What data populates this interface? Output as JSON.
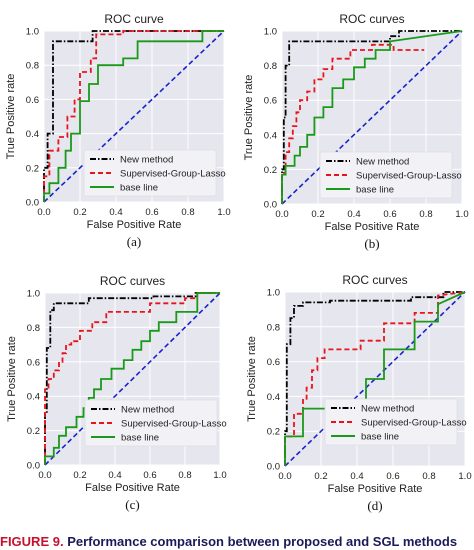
{
  "caption": {
    "label": "FIGURE 9.",
    "text": "Performance comparison between proposed and SGL methods"
  },
  "legend_labels": [
    "New method",
    "Supervised-Group-Lasso",
    "base line"
  ],
  "series_styles": {
    "New method": {
      "color": "#000000",
      "dash": "dashdot"
    },
    "Supervised-Group-Lasso": {
      "color": "#e8141c",
      "dash": "dashed"
    },
    "base line": {
      "color": "#1a9a1a",
      "dash": "solid"
    },
    "diagonal": {
      "color": "#1a22cc",
      "dash": "dashed"
    }
  },
  "colors": {
    "plot_bg": "#e6e6ee",
    "grid": "#ffffff"
  },
  "chart_data": [
    {
      "type": "line",
      "panel_label": "(a)",
      "title": "ROC curve",
      "xlabel": "False Positive Rate",
      "ylabel": "True Positive rate",
      "xlim": [
        0,
        1
      ],
      "ylim": [
        0,
        1
      ],
      "xticks": [
        "0.0",
        "0.2",
        "0.4",
        "0.6",
        "0.8",
        "1.0"
      ],
      "yticks": [
        "0.0",
        "0.2",
        "0.4",
        "0.6",
        "0.8",
        "1.0"
      ],
      "legend_position": "center-left",
      "series": [
        {
          "name": "New method",
          "x": [
            0,
            0,
            0.02,
            0.02,
            0.05,
            0.05,
            0.08,
            0.08,
            0.27,
            0.27,
            1.0
          ],
          "y": [
            0,
            0.2,
            0.2,
            0.4,
            0.4,
            0.94,
            0.94,
            0.94,
            0.94,
            1.0,
            1.0
          ]
        },
        {
          "name": "Supervised-Group-Lasso",
          "x": [
            0,
            0,
            0.03,
            0.03,
            0.08,
            0.08,
            0.13,
            0.13,
            0.17,
            0.17,
            0.2,
            0.2,
            0.26,
            0.26,
            0.29,
            0.29,
            0.44,
            0.44,
            1.0
          ],
          "y": [
            0,
            0.15,
            0.15,
            0.3,
            0.3,
            0.38,
            0.38,
            0.5,
            0.5,
            0.6,
            0.6,
            0.76,
            0.76,
            0.84,
            0.84,
            0.98,
            0.98,
            1.0,
            1.0
          ]
        },
        {
          "name": "base line",
          "x": [
            0,
            0,
            0.03,
            0.03,
            0.08,
            0.08,
            0.12,
            0.12,
            0.15,
            0.15,
            0.2,
            0.2,
            0.25,
            0.25,
            0.3,
            0.3,
            0.44,
            0.44,
            0.52,
            0.52,
            0.88,
            0.88,
            1.0
          ],
          "y": [
            0,
            0.05,
            0.05,
            0.11,
            0.11,
            0.2,
            0.2,
            0.3,
            0.3,
            0.4,
            0.4,
            0.59,
            0.59,
            0.69,
            0.69,
            0.8,
            0.8,
            0.84,
            0.84,
            0.94,
            0.94,
            1.0,
            1.0
          ]
        }
      ]
    },
    {
      "type": "line",
      "panel_label": "(b)",
      "title": "ROC curves",
      "xlabel": "False Positive Rate",
      "ylabel": "True Positive rate",
      "xlim": [
        0,
        1
      ],
      "ylim": [
        0,
        1
      ],
      "xticks": [
        "0.0",
        "0.2",
        "0.4",
        "0.6",
        "0.8",
        "1.0"
      ],
      "yticks": [
        "0.0",
        "0.2",
        "0.4",
        "0.6",
        "0.8",
        "1.0"
      ],
      "legend_position": "lower-center",
      "series": [
        {
          "name": "New method",
          "x": [
            0,
            0,
            0.01,
            0.01,
            0.02,
            0.02,
            0.04,
            0.04,
            0.6,
            0.6,
            0.65,
            0.65,
            1.0
          ],
          "y": [
            0,
            0.2,
            0.2,
            0.5,
            0.5,
            0.8,
            0.8,
            0.94,
            0.94,
            0.97,
            0.97,
            1.0,
            1.0
          ]
        },
        {
          "name": "Supervised-Group-Lasso",
          "x": [
            0,
            0,
            0.02,
            0.02,
            0.04,
            0.04,
            0.06,
            0.06,
            0.08,
            0.08,
            0.1,
            0.1,
            0.14,
            0.14,
            0.18,
            0.18,
            0.23,
            0.23,
            0.28,
            0.28,
            0.38,
            0.38,
            0.5,
            0.5,
            0.62,
            0.62,
            0.79
          ],
          "y": [
            0,
            0.18,
            0.18,
            0.3,
            0.3,
            0.38,
            0.38,
            0.45,
            0.45,
            0.53,
            0.53,
            0.6,
            0.6,
            0.65,
            0.65,
            0.72,
            0.72,
            0.78,
            0.78,
            0.84,
            0.84,
            0.89,
            0.89,
            0.92,
            0.92,
            0.89,
            0.89
          ]
        },
        {
          "name": "base line",
          "x": [
            0,
            0,
            0.02,
            0.02,
            0.07,
            0.07,
            0.1,
            0.1,
            0.14,
            0.14,
            0.18,
            0.18,
            0.23,
            0.23,
            0.28,
            0.28,
            0.34,
            0.34,
            0.4,
            0.4,
            0.46,
            0.46,
            0.52,
            0.52,
            0.6,
            0.6,
            1.0
          ],
          "y": [
            0,
            0.17,
            0.17,
            0.22,
            0.22,
            0.28,
            0.28,
            0.33,
            0.33,
            0.4,
            0.4,
            0.5,
            0.5,
            0.56,
            0.56,
            0.67,
            0.67,
            0.72,
            0.72,
            0.79,
            0.79,
            0.84,
            0.84,
            0.89,
            0.89,
            0.94,
            1.0
          ]
        }
      ]
    },
    {
      "type": "line",
      "panel_label": "(c)",
      "title": "ROC curves",
      "xlabel": "False Positive Rate",
      "ylabel": "True Positive rate",
      "xlim": [
        0,
        1
      ],
      "ylim": [
        0,
        1
      ],
      "xticks": [
        "0.0",
        "0.2",
        "0.4",
        "0.6",
        "0.8",
        "1.0"
      ],
      "yticks": [
        "0.0",
        "0.2",
        "0.4",
        "0.6",
        "0.8",
        "1.0"
      ],
      "legend_position": "lower-right",
      "series": [
        {
          "name": "New method",
          "x": [
            0,
            0,
            0.01,
            0.01,
            0.03,
            0.03,
            0.05,
            0.05,
            0.25,
            0.25,
            0.62,
            0.62,
            0.86,
            0.86,
            1.0
          ],
          "y": [
            0,
            0.3,
            0.3,
            0.68,
            0.68,
            0.9,
            0.9,
            0.94,
            0.94,
            0.97,
            0.97,
            0.98,
            0.98,
            1.0,
            1.0
          ]
        },
        {
          "name": "Supervised-Group-Lasso",
          "x": [
            0,
            0,
            0.02,
            0.02,
            0.05,
            0.05,
            0.08,
            0.08,
            0.1,
            0.1,
            0.12,
            0.12,
            0.15,
            0.15,
            0.2,
            0.2,
            0.27,
            0.27,
            0.35,
            0.35,
            0.45,
            0.45,
            0.6,
            0.6,
            0.8,
            0.8,
            0.87,
            0.87,
            1.0
          ],
          "y": [
            0,
            0.44,
            0.44,
            0.5,
            0.5,
            0.55,
            0.55,
            0.6,
            0.6,
            0.65,
            0.65,
            0.7,
            0.7,
            0.72,
            0.72,
            0.78,
            0.78,
            0.83,
            0.83,
            0.89,
            0.89,
            0.89,
            0.89,
            0.94,
            0.94,
            0.97,
            0.97,
            1.0,
            1.0
          ]
        },
        {
          "name": "base line",
          "x": [
            0,
            0,
            0.05,
            0.05,
            0.08,
            0.08,
            0.12,
            0.12,
            0.18,
            0.18,
            0.22,
            0.22,
            0.25,
            0.25,
            0.28,
            0.28,
            0.32,
            0.32,
            0.38,
            0.38,
            0.45,
            0.45,
            0.5,
            0.5,
            0.55,
            0.55,
            0.6,
            0.6,
            0.65,
            0.65,
            0.75,
            0.75,
            0.87,
            0.87,
            1.0
          ],
          "y": [
            0,
            0.05,
            0.05,
            0.1,
            0.1,
            0.17,
            0.17,
            0.22,
            0.22,
            0.28,
            0.28,
            0.33,
            0.33,
            0.39,
            0.39,
            0.44,
            0.44,
            0.5,
            0.5,
            0.56,
            0.56,
            0.61,
            0.61,
            0.67,
            0.67,
            0.72,
            0.72,
            0.78,
            0.78,
            0.83,
            0.83,
            0.89,
            0.89,
            1.0,
            1.0
          ]
        }
      ]
    },
    {
      "type": "line",
      "panel_label": "(d)",
      "title": "ROC curves",
      "xlabel": "False Positive Rate",
      "ylabel": "True Positive rate",
      "xlim": [
        0,
        1
      ],
      "ylim": [
        0,
        1
      ],
      "xticks": [
        "0.0",
        "0.2",
        "0.4",
        "0.6",
        "0.8",
        "1.0"
      ],
      "yticks": [
        "0.0",
        "0.2",
        "0.4",
        "0.6",
        "0.8",
        "1.0"
      ],
      "legend_position": "lower-right",
      "series": [
        {
          "name": "New method",
          "x": [
            0,
            0,
            0.01,
            0.01,
            0.03,
            0.03,
            0.05,
            0.05,
            0.1,
            0.1,
            0.25,
            0.25,
            0.7,
            0.7,
            0.88,
            0.88,
            1.0
          ],
          "y": [
            0,
            0.2,
            0.2,
            0.7,
            0.7,
            0.85,
            0.85,
            0.92,
            0.92,
            0.94,
            0.94,
            0.95,
            0.95,
            0.97,
            0.97,
            1.0,
            1.0
          ]
        },
        {
          "name": "Supervised-Group-Lasso",
          "x": [
            0,
            0,
            0.05,
            0.05,
            0.1,
            0.1,
            0.12,
            0.12,
            0.15,
            0.15,
            0.18,
            0.18,
            0.22,
            0.22,
            0.3,
            0.3,
            0.42,
            0.42,
            0.55,
            0.55,
            0.72,
            0.72,
            0.85,
            0.85,
            1.0
          ],
          "y": [
            0,
            0.17,
            0.17,
            0.3,
            0.3,
            0.38,
            0.38,
            0.45,
            0.45,
            0.55,
            0.55,
            0.62,
            0.62,
            0.67,
            0.67,
            0.67,
            0.67,
            0.72,
            0.72,
            0.82,
            0.82,
            0.88,
            0.88,
            0.98,
            1.0
          ]
        },
        {
          "name": "base line",
          "x": [
            0,
            0,
            0.03,
            0.03,
            0.1,
            0.1,
            0.3,
            0.3,
            0.45,
            0.45,
            0.55,
            0.55,
            0.72,
            0.72,
            0.85,
            0.85,
            1.0
          ],
          "y": [
            0,
            0.17,
            0.17,
            0.17,
            0.17,
            0.33,
            0.33,
            0.33,
            0.33,
            0.5,
            0.5,
            0.67,
            0.67,
            0.83,
            0.83,
            0.93,
            1.0
          ]
        }
      ]
    }
  ]
}
